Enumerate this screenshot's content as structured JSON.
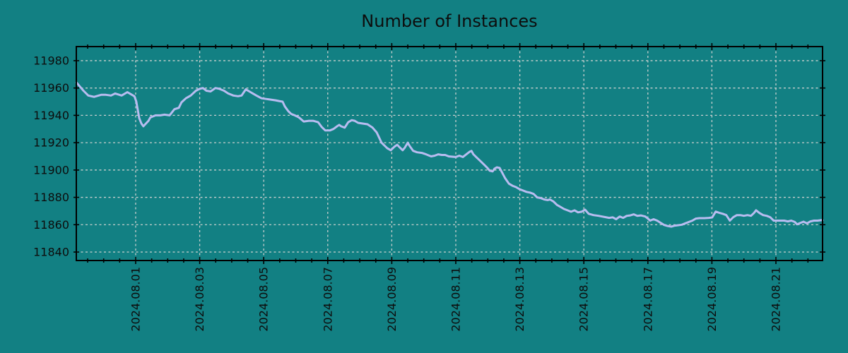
{
  "chart_data": {
    "type": "line",
    "title": "Number of Instances",
    "xlabel": "",
    "ylabel": "",
    "x_axis": {
      "tick_days": [
        0,
        2,
        4,
        6,
        8,
        10,
        12,
        14,
        16,
        18,
        20
      ],
      "tick_labels": [
        "2024.08.01",
        "2024.08.03",
        "2024.08.05",
        "2024.08.07",
        "2024.08.09",
        "2024.08.11",
        "2024.08.13",
        "2024.08.15",
        "2024.08.17",
        "2024.08.19",
        "2024.08.21"
      ],
      "minor_tick_step_days": 0.5,
      "xlim_days_from_aug1": [
        -1.854,
        21.457
      ],
      "label_rotation_deg": 90
    },
    "y_axis": {
      "ticks": [
        11840,
        11860,
        11880,
        11900,
        11920,
        11940,
        11960,
        11980
      ],
      "ylim": [
        11833.8,
        11990.3
      ]
    },
    "grid": {
      "visible": true,
      "style": "dashed"
    },
    "legend": {
      "visible": false
    },
    "colors": {
      "background": "#128083",
      "line": "#b8bcf0",
      "grid": "#c9cfce",
      "axis": "#000000",
      "text": "#0d0d0d"
    },
    "series": [
      {
        "name": "instances",
        "points_day_value": [
          [
            -1.85,
            11964
          ],
          [
            -1.74,
            11961
          ],
          [
            -1.63,
            11958
          ],
          [
            -1.48,
            11954.5
          ],
          [
            -1.3,
            11953.5
          ],
          [
            -1.08,
            11955
          ],
          [
            -0.93,
            11955
          ],
          [
            -0.77,
            11954.5
          ],
          [
            -0.64,
            11956
          ],
          [
            -0.44,
            11954.5
          ],
          [
            -0.26,
            11957
          ],
          [
            -0.15,
            11955.5
          ],
          [
            -0.04,
            11954
          ],
          [
            0.02,
            11950
          ],
          [
            0.11,
            11938
          ],
          [
            0.18,
            11934
          ],
          [
            0.24,
            11932
          ],
          [
            0.4,
            11936
          ],
          [
            0.46,
            11938.5
          ],
          [
            0.62,
            11940
          ],
          [
            0.77,
            11940
          ],
          [
            0.9,
            11940.5
          ],
          [
            1.06,
            11940
          ],
          [
            1.21,
            11944.5
          ],
          [
            1.35,
            11945.5
          ],
          [
            1.43,
            11949.5
          ],
          [
            1.57,
            11952.5
          ],
          [
            1.72,
            11954.5
          ],
          [
            1.88,
            11958
          ],
          [
            2.01,
            11959.5
          ],
          [
            2.1,
            11960
          ],
          [
            2.21,
            11958
          ],
          [
            2.34,
            11957.5
          ],
          [
            2.49,
            11960
          ],
          [
            2.6,
            11959.5
          ],
          [
            2.76,
            11958
          ],
          [
            2.89,
            11956
          ],
          [
            3.05,
            11954.5
          ],
          [
            3.2,
            11954
          ],
          [
            3.31,
            11954.5
          ],
          [
            3.38,
            11957
          ],
          [
            3.44,
            11959
          ],
          [
            3.55,
            11957.5
          ],
          [
            3.66,
            11956
          ],
          [
            3.77,
            11954.5
          ],
          [
            3.93,
            11952.5
          ],
          [
            4.08,
            11952
          ],
          [
            4.22,
            11951.5
          ],
          [
            4.37,
            11951
          ],
          [
            4.48,
            11950.5
          ],
          [
            4.59,
            11950
          ],
          [
            4.66,
            11946.5
          ],
          [
            4.77,
            11943
          ],
          [
            4.86,
            11941
          ],
          [
            4.97,
            11940
          ],
          [
            5.1,
            11938.5
          ],
          [
            5.25,
            11935.5
          ],
          [
            5.41,
            11936
          ],
          [
            5.54,
            11936
          ],
          [
            5.7,
            11935
          ],
          [
            5.81,
            11931.5
          ],
          [
            5.92,
            11929
          ],
          [
            6.07,
            11929
          ],
          [
            6.18,
            11930
          ],
          [
            6.29,
            11932
          ],
          [
            6.36,
            11933
          ],
          [
            6.42,
            11932
          ],
          [
            6.53,
            11931
          ],
          [
            6.64,
            11935
          ],
          [
            6.75,
            11936.5
          ],
          [
            6.84,
            11936
          ],
          [
            6.95,
            11934.5
          ],
          [
            7.09,
            11934
          ],
          [
            7.24,
            11933.5
          ],
          [
            7.4,
            11931
          ],
          [
            7.53,
            11927.5
          ],
          [
            7.62,
            11923
          ],
          [
            7.68,
            11920
          ],
          [
            7.79,
            11917.5
          ],
          [
            7.86,
            11916
          ],
          [
            7.97,
            11914.5
          ],
          [
            8.08,
            11917
          ],
          [
            8.17,
            11918.5
          ],
          [
            8.23,
            11917
          ],
          [
            8.34,
            11914.5
          ],
          [
            8.41,
            11916.5
          ],
          [
            8.5,
            11920
          ],
          [
            8.56,
            11917.5
          ],
          [
            8.67,
            11914
          ],
          [
            8.79,
            11913
          ],
          [
            8.94,
            11912.5
          ],
          [
            9.07,
            11911.5
          ],
          [
            9.23,
            11910
          ],
          [
            9.34,
            11910.5
          ],
          [
            9.45,
            11911.5
          ],
          [
            9.56,
            11911
          ],
          [
            9.67,
            11911
          ],
          [
            9.78,
            11910
          ],
          [
            10.0,
            11909.5
          ],
          [
            10.11,
            11910.5
          ],
          [
            10.22,
            11909.5
          ],
          [
            10.33,
            11911.5
          ],
          [
            10.44,
            11913.5
          ],
          [
            10.49,
            11914
          ],
          [
            10.55,
            11911.5
          ],
          [
            10.66,
            11909
          ],
          [
            10.77,
            11906.5
          ],
          [
            10.88,
            11904
          ],
          [
            10.99,
            11901.5
          ],
          [
            11.06,
            11899.5
          ],
          [
            11.15,
            11899
          ],
          [
            11.21,
            11901
          ],
          [
            11.28,
            11902
          ],
          [
            11.37,
            11901.5
          ],
          [
            11.45,
            11898
          ],
          [
            11.54,
            11894
          ],
          [
            11.66,
            11890
          ],
          [
            11.77,
            11888.5
          ],
          [
            11.88,
            11887.5
          ],
          [
            11.99,
            11886
          ],
          [
            12.1,
            11885
          ],
          [
            12.21,
            11884
          ],
          [
            12.32,
            11883.5
          ],
          [
            12.43,
            11882.5
          ],
          [
            12.54,
            11880
          ],
          [
            12.65,
            11879.5
          ],
          [
            12.76,
            11878.5
          ],
          [
            12.87,
            11878
          ],
          [
            12.94,
            11878.5
          ],
          [
            13.05,
            11877
          ],
          [
            13.16,
            11874.5
          ],
          [
            13.27,
            11873
          ],
          [
            13.38,
            11871.5
          ],
          [
            13.49,
            11870.5
          ],
          [
            13.6,
            11869.5
          ],
          [
            13.71,
            11870.5
          ],
          [
            13.82,
            11869
          ],
          [
            13.93,
            11869.5
          ],
          [
            14.04,
            11871
          ],
          [
            14.15,
            11868
          ],
          [
            14.3,
            11867
          ],
          [
            14.46,
            11866.5
          ],
          [
            14.57,
            11866
          ],
          [
            14.68,
            11865.5
          ],
          [
            14.79,
            11865
          ],
          [
            14.9,
            11865.4
          ],
          [
            15.01,
            11864
          ],
          [
            15.12,
            11866
          ],
          [
            15.23,
            11865
          ],
          [
            15.34,
            11866.5
          ],
          [
            15.45,
            11866.8
          ],
          [
            15.56,
            11867.6
          ],
          [
            15.67,
            11866.5
          ],
          [
            15.78,
            11866.8
          ],
          [
            15.92,
            11866
          ],
          [
            16.0,
            11864.5
          ],
          [
            16.07,
            11863
          ],
          [
            16.18,
            11864
          ],
          [
            16.29,
            11863
          ],
          [
            16.4,
            11861.4
          ],
          [
            16.51,
            11859.8
          ],
          [
            16.62,
            11859
          ],
          [
            16.73,
            11858.6
          ],
          [
            16.84,
            11859.3
          ],
          [
            16.95,
            11859.6
          ],
          [
            17.06,
            11860
          ],
          [
            17.17,
            11861
          ],
          [
            17.28,
            11862
          ],
          [
            17.39,
            11863
          ],
          [
            17.5,
            11864.5
          ],
          [
            17.61,
            11864.8
          ],
          [
            17.77,
            11864.8
          ],
          [
            17.9,
            11865
          ],
          [
            18.01,
            11865.3
          ],
          [
            18.12,
            11869.6
          ],
          [
            18.23,
            11868.7
          ],
          [
            18.34,
            11868
          ],
          [
            18.45,
            11867
          ],
          [
            18.56,
            11863
          ],
          [
            18.67,
            11865.5
          ],
          [
            18.78,
            11867
          ],
          [
            18.89,
            11867
          ],
          [
            19.0,
            11866.5
          ],
          [
            19.11,
            11867
          ],
          [
            19.22,
            11866.5
          ],
          [
            19.32,
            11868.7
          ],
          [
            19.38,
            11870.6
          ],
          [
            19.49,
            11868.5
          ],
          [
            19.6,
            11867
          ],
          [
            19.71,
            11866.5
          ],
          [
            19.82,
            11865.5
          ],
          [
            19.93,
            11863
          ],
          [
            20.04,
            11863
          ],
          [
            20.15,
            11863
          ],
          [
            20.26,
            11863
          ],
          [
            20.37,
            11862.4
          ],
          [
            20.48,
            11863
          ],
          [
            20.59,
            11862
          ],
          [
            20.66,
            11860.3
          ],
          [
            20.77,
            11861.4
          ],
          [
            20.86,
            11862.2
          ],
          [
            20.97,
            11861
          ],
          [
            21.08,
            11862.4
          ],
          [
            21.19,
            11863
          ],
          [
            21.3,
            11863
          ],
          [
            21.41,
            11863.3
          ],
          [
            21.46,
            11863.3
          ]
        ]
      }
    ]
  }
}
